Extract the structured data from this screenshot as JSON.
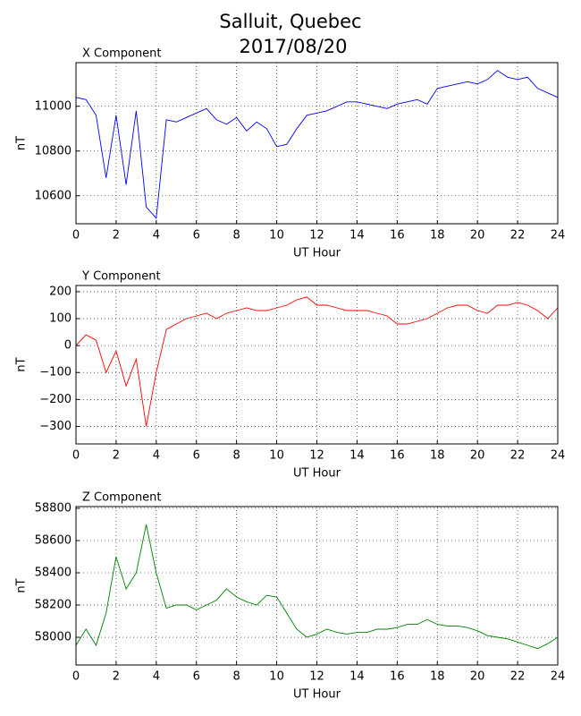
{
  "title": "Salluit, Quebec",
  "subtitle": "2017/08/20",
  "chart_data": [
    {
      "type": "line",
      "title": "X Component",
      "xlabel": "UT Hour",
      "ylabel": "nT",
      "grid": true,
      "x": [
        0,
        0.5,
        1,
        1.5,
        2,
        2.5,
        3,
        3.5,
        4,
        4.5,
        5,
        5.5,
        6,
        6.5,
        7,
        7.5,
        8,
        8.5,
        9,
        9.5,
        10,
        10.5,
        11,
        11.5,
        12,
        12.5,
        13,
        13.5,
        14,
        14.5,
        15,
        15.5,
        16,
        16.5,
        17,
        17.5,
        18,
        18.5,
        19,
        19.5,
        20,
        20.5,
        21,
        21.5,
        22,
        22.5,
        23,
        23.5,
        24
      ],
      "series": [
        {
          "name": "X Component",
          "color": "#0000ff",
          "values": [
            11040,
            11030,
            10960,
            10680,
            10960,
            10650,
            10980,
            10550,
            10500,
            10940,
            10930,
            10950,
            10970,
            10990,
            10940,
            10920,
            10950,
            10890,
            10930,
            10900,
            10820,
            10830,
            10900,
            10960,
            10970,
            10980,
            11000,
            11020,
            11020,
            11010,
            11000,
            10990,
            11010,
            11020,
            11030,
            11010,
            11080,
            11090,
            11100,
            11110,
            11100,
            11120,
            11160,
            11130,
            11120,
            11130,
            11080,
            11060,
            11040
          ]
        }
      ],
      "xlim": [
        0,
        24
      ],
      "xticks": [
        0,
        2,
        4,
        6,
        8,
        10,
        12,
        14,
        16,
        18,
        20,
        22,
        24
      ],
      "ylim": [
        10475,
        11195
      ],
      "yticks": [
        10600,
        10800,
        11000
      ]
    },
    {
      "type": "line",
      "title": "Y Component",
      "xlabel": "UT Hour",
      "ylabel": "nT",
      "grid": true,
      "x": [
        0,
        0.5,
        1,
        1.5,
        2,
        2.5,
        3,
        3.5,
        4,
        4.5,
        5,
        5.5,
        6,
        6.5,
        7,
        7.5,
        8,
        8.5,
        9,
        9.5,
        10,
        10.5,
        11,
        11.5,
        12,
        12.5,
        13,
        13.5,
        14,
        14.5,
        15,
        15.5,
        16,
        16.5,
        17,
        17.5,
        18,
        18.5,
        19,
        19.5,
        20,
        20.5,
        21,
        21.5,
        22,
        22.5,
        23,
        23.5,
        24
      ],
      "series": [
        {
          "name": "Y Component",
          "color": "#ff0000",
          "values": [
            0,
            40,
            20,
            -100,
            -20,
            -150,
            -50,
            -300,
            -100,
            60,
            80,
            100,
            110,
            120,
            100,
            120,
            130,
            140,
            130,
            130,
            140,
            150,
            170,
            180,
            150,
            150,
            140,
            130,
            130,
            130,
            120,
            110,
            80,
            80,
            90,
            100,
            120,
            140,
            150,
            150,
            130,
            120,
            150,
            150,
            160,
            150,
            130,
            100,
            140
          ]
        }
      ],
      "xlim": [
        0,
        24
      ],
      "xticks": [
        0,
        2,
        4,
        6,
        8,
        10,
        12,
        14,
        16,
        18,
        20,
        22,
        24
      ],
      "ylim": [
        -365,
        223
      ],
      "yticks": [
        {
          "value": -300,
          "label": "−300"
        },
        {
          "value": -200,
          "label": "−200"
        },
        {
          "value": -100,
          "label": "−100"
        },
        0,
        100,
        200
      ]
    },
    {
      "type": "line",
      "title": "Z Component",
      "xlabel": "UT Hour",
      "ylabel": "nT",
      "grid": true,
      "x": [
        0,
        0.5,
        1,
        1.5,
        2,
        2.5,
        3,
        3.5,
        4,
        4.5,
        5,
        5.5,
        6,
        6.5,
        7,
        7.5,
        8,
        8.5,
        9,
        9.5,
        10,
        10.5,
        11,
        11.5,
        12,
        12.5,
        13,
        13.5,
        14,
        14.5,
        15,
        15.5,
        16,
        16.5,
        17,
        17.5,
        18,
        18.5,
        19,
        19.5,
        20,
        20.5,
        21,
        21.5,
        22,
        22.5,
        23,
        23.5,
        24
      ],
      "series": [
        {
          "name": "Z Component",
          "color": "#008000",
          "values": [
            57950,
            58050,
            57950,
            58150,
            58500,
            58300,
            58400,
            58700,
            58400,
            58180,
            58200,
            58200,
            58170,
            58200,
            58230,
            58300,
            58250,
            58220,
            58200,
            58260,
            58250,
            58150,
            58050,
            58000,
            58020,
            58050,
            58030,
            58020,
            58030,
            58030,
            58050,
            58050,
            58060,
            58080,
            58080,
            58110,
            58080,
            58070,
            58070,
            58060,
            58040,
            58010,
            58000,
            57990,
            57970,
            57950,
            57930,
            57960,
            58000
          ]
        }
      ],
      "xlim": [
        0,
        24
      ],
      "xticks": [
        0,
        2,
        4,
        6,
        8,
        10,
        12,
        14,
        16,
        18,
        20,
        22,
        24
      ],
      "ylim": [
        57828,
        58811
      ],
      "yticks": [
        58000,
        58200,
        58400,
        58600,
        58800
      ]
    }
  ]
}
